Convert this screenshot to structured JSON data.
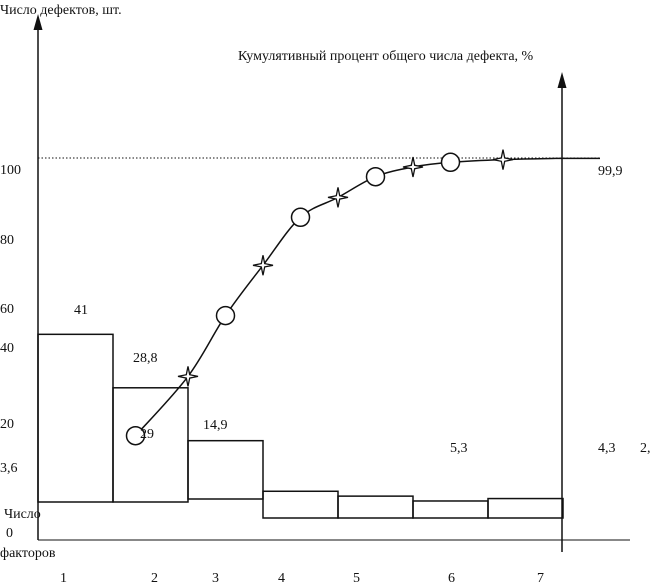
{
  "chart_data": {
    "type": "pareto",
    "left_axis_title": "Число дефектов, шт.",
    "right_axis_title": "Кумулятивный процент общего числа дефекта, %",
    "x_axis_title_line1": "Число",
    "x_axis_title_line2": "факторов",
    "x_axis_zero": "0",
    "left_ticks": [
      "100",
      "80",
      "60",
      "40",
      "20"
    ],
    "categories": [
      "1",
      "2",
      "3",
      "4",
      "5",
      "6",
      "7"
    ],
    "bar_values_labeled": [
      41,
      29,
      14.9
    ],
    "bar_heights_relative": [
      0.69,
      0.47,
      0.24,
      0.11,
      0.09,
      0.07,
      0.08
    ],
    "cumulative_x": [
      1.8,
      2.5,
      3.0,
      3.5,
      4.0,
      4.5,
      5.0,
      5.5,
      6.0,
      6.7,
      7.4
    ],
    "cumulative_pct": [
      28.8,
      44.0,
      59.6,
      72.5,
      84.8,
      89.9,
      95.2,
      97.7,
      98.9,
      99.6,
      99.9
    ],
    "markers": [
      "circle",
      "star",
      "circle",
      "star",
      "circle",
      "star",
      "circle",
      "star",
      "circle",
      "star"
    ],
    "point_labels": [
      {
        "text": "41"
      },
      {
        "text": "28,8"
      },
      {
        "text": "29"
      },
      {
        "text": "14,9"
      },
      {
        "text": "5,3"
      },
      {
        "text": "4,3"
      },
      {
        "text": "2,"
      },
      {
        "text": "3,6"
      },
      {
        "text": "99,9"
      }
    ],
    "reference_line_pct": 100,
    "colors": {
      "ink": "#111111",
      "background": "#ffffff"
    }
  }
}
